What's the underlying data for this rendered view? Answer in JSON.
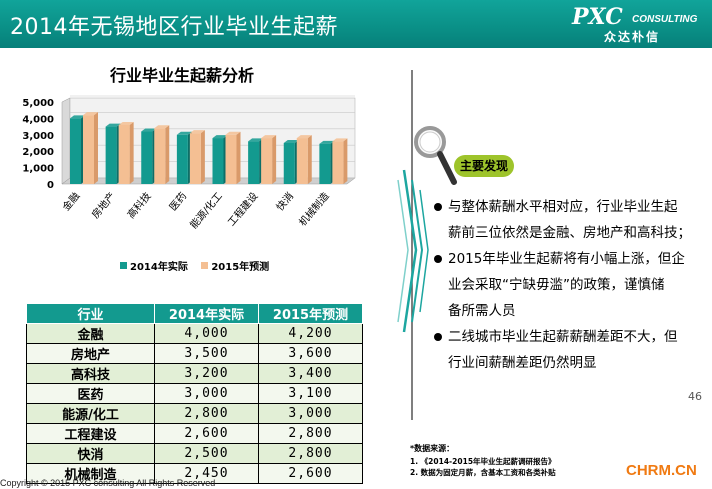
{
  "header": {
    "title": "2014年无锡地区行业毕业生起薪",
    "logo_main": "PXC",
    "logo_sub": "CONSULTING",
    "logo_cn": "众达朴信"
  },
  "chart_title": "行业毕业生起薪分析",
  "chart_data": {
    "type": "bar",
    "categories": [
      "金融",
      "房地产",
      "高科技",
      "医药",
      "能源/化工",
      "工程建设",
      "快消",
      "机械制造"
    ],
    "series": [
      {
        "name": "2014年实际",
        "values": [
          4000,
          3500,
          3200,
          3000,
          2800,
          2600,
          2500,
          2450
        ]
      },
      {
        "name": "2015年预测",
        "values": [
          4200,
          3600,
          3400,
          3100,
          3000,
          2800,
          2800,
          2600
        ]
      }
    ],
    "yticks": [
      "5,000",
      "4,000",
      "3,000",
      "2,000",
      "1,000",
      "0"
    ],
    "ylim": [
      0,
      5000
    ],
    "colors": {
      "2014": "#139a8f",
      "2015": "#f4bf93"
    },
    "legend_position": "bottom"
  },
  "table": {
    "headers": [
      "行业",
      "2014年实际",
      "2015年预测"
    ],
    "rows": [
      [
        "金融",
        "4,000",
        "4,200"
      ],
      [
        "房地产",
        "3,500",
        "3,600"
      ],
      [
        "高科技",
        "3,200",
        "3,400"
      ],
      [
        "医药",
        "3,000",
        "3,100"
      ],
      [
        "能源/化工",
        "2,800",
        "3,000"
      ],
      [
        "工程建设",
        "2,600",
        "2,800"
      ],
      [
        "快消",
        "2,500",
        "2,800"
      ],
      [
        "机械制造",
        "2,450",
        "2,600"
      ]
    ]
  },
  "badge": "主要发现",
  "findings": [
    [
      "与整体薪酬水平相对应，行业毕业生起",
      "薪前三位依然是金融、房地产和高科技；"
    ],
    [
      "2015年毕业生起薪将有小幅上涨，但企",
      "业会采取“宁缺毋滥”的政策，谨慎储",
      "备所需人员"
    ],
    [
      "二线城市毕业生起薪薪酬差距不大，但",
      "行业间薪酬差距仍然明显"
    ]
  ],
  "source": {
    "label": "*数据来源：",
    "line1": "1.     《2014-2015年毕业生起薪调研报告》",
    "line2": "2.     数据为固定月薪，含基本工资和各类补贴"
  },
  "page_number": "46",
  "copyright": "Copyright © 2015 PXC consulting All Rights Reserved",
  "watermark": "CHRM.CN"
}
